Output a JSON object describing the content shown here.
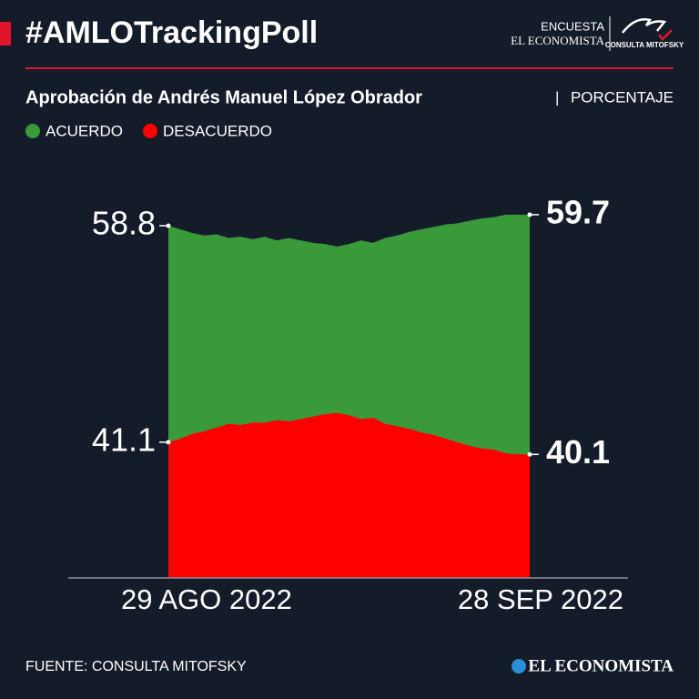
{
  "chart_data": {
    "type": "area",
    "title": "#AMLOTrackingPoll",
    "subtitle": "Aprobación de Andrés Manuel López Obrador",
    "unit": "PORCENTAJE",
    "brand_top": "ENCUESTA",
    "brand_name": "EL ECONOMISTA",
    "brand_partner": "CONSULTA MITOFSKY",
    "source": "FUENTE: CONSULTA MITOFSKY",
    "footer_brand": "EL ECONOMISTA",
    "categories": [
      "29 AGO 2022",
      null,
      null,
      null,
      null,
      null,
      null,
      null,
      null,
      null,
      null,
      null,
      null,
      null,
      null,
      null,
      null,
      null,
      null,
      null,
      null,
      null,
      null,
      null,
      null,
      null,
      null,
      null,
      null,
      null,
      "28 SEP 2022"
    ],
    "ylim": [
      30,
      62
    ],
    "series": [
      {
        "name": "ACUERDO",
        "color": "#3a9a3a",
        "values": [
          58.8,
          58.5,
          58.2,
          58.0,
          58.1,
          57.8,
          57.9,
          57.7,
          57.9,
          57.6,
          57.8,
          57.6,
          57.4,
          57.3,
          57.1,
          57.3,
          57.6,
          57.4,
          57.8,
          58.0,
          58.3,
          58.5,
          58.7,
          58.9,
          59.0,
          59.2,
          59.4,
          59.5,
          59.7,
          59.7,
          59.7
        ]
      },
      {
        "name": "DESACUERDO",
        "color": "#ff0000",
        "values": [
          41.1,
          41.4,
          41.8,
          42.0,
          42.3,
          42.6,
          42.5,
          42.7,
          42.7,
          42.9,
          42.8,
          43.0,
          43.2,
          43.4,
          43.5,
          43.3,
          43.0,
          43.1,
          42.6,
          42.4,
          42.2,
          41.9,
          41.7,
          41.4,
          41.1,
          40.8,
          40.6,
          40.5,
          40.2,
          40.1,
          40.1
        ]
      }
    ]
  }
}
